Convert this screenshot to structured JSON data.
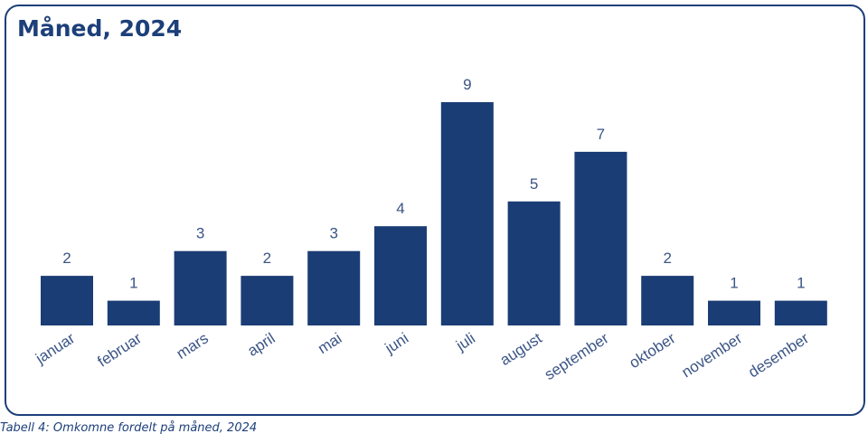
{
  "chart_data": {
    "type": "bar",
    "title": "Måned, 2024",
    "categories": [
      "januar",
      "februar",
      "mars",
      "april",
      "mai",
      "juni",
      "juli",
      "august",
      "september",
      "oktober",
      "november",
      "desember"
    ],
    "values": [
      2,
      1,
      3,
      2,
      3,
      4,
      9,
      5,
      7,
      2,
      1,
      1
    ],
    "xlabel": "",
    "ylabel": "",
    "ylim": [
      0,
      9
    ],
    "grid": false,
    "legend": "none",
    "bar_color": "#1b3d75",
    "label_color": "#3b5586"
  },
  "caption": "Tabell 4: Omkomne fordelt på måned, 2024"
}
